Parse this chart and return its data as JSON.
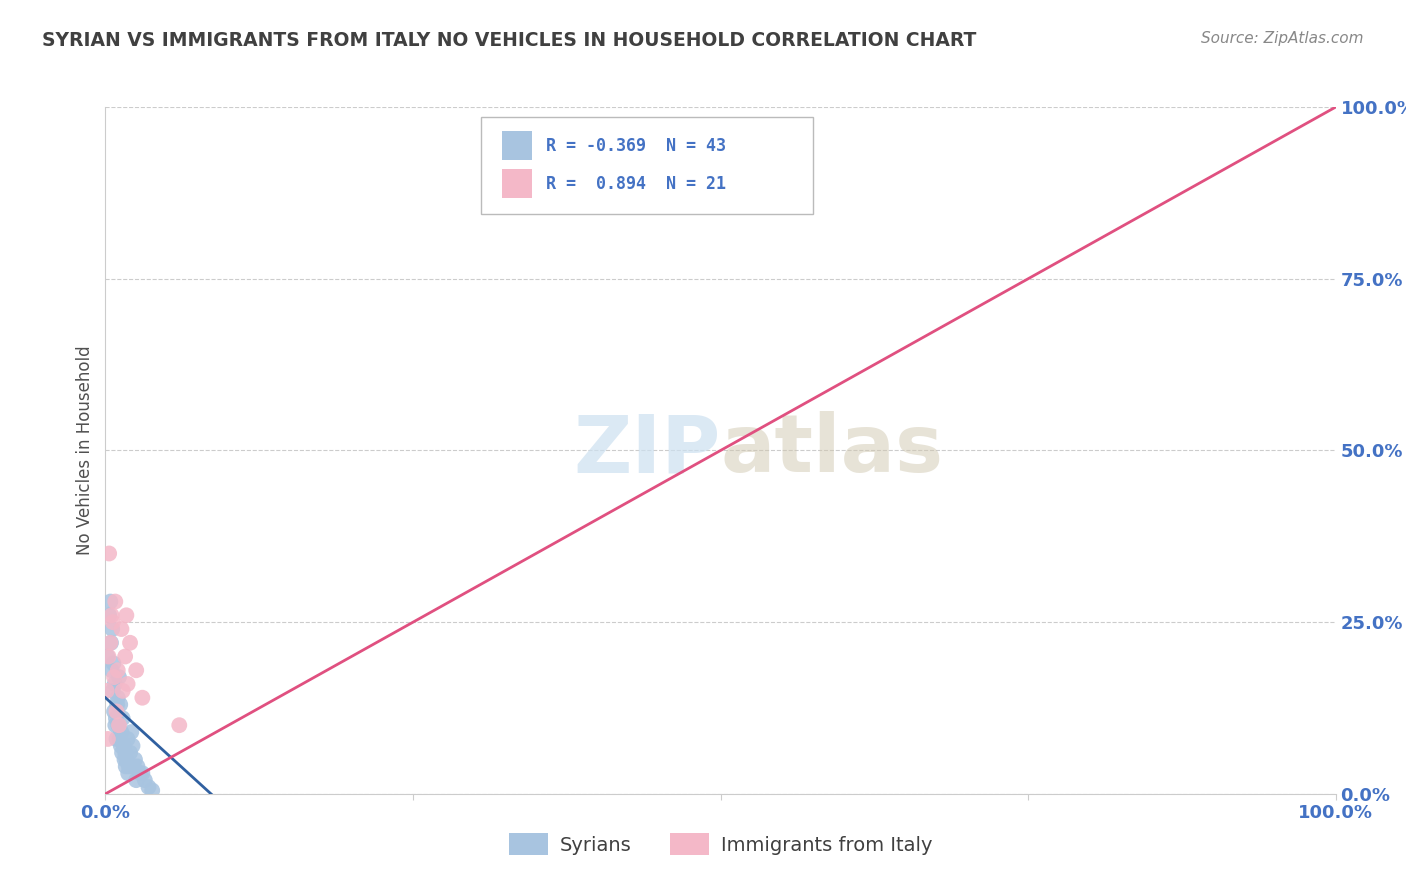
{
  "title": "SYRIAN VS IMMIGRANTS FROM ITALY NO VEHICLES IN HOUSEHOLD CORRELATION CHART",
  "source": "Source: ZipAtlas.com",
  "ylabel": "No Vehicles in Household",
  "ytick_labels": [
    "0.0%",
    "25.0%",
    "50.0%",
    "75.0%",
    "100.0%"
  ],
  "ytick_vals": [
    0,
    25,
    50,
    75,
    100
  ],
  "xtick_labels": [
    "0.0%",
    "",
    "",
    "",
    "100.0%"
  ],
  "xtick_vals": [
    0,
    25,
    50,
    75,
    100
  ],
  "legend_r1": "R = -0.369  N = 43",
  "legend_r2": "R =  0.894  N = 21",
  "bottom_labels": [
    "Syrians",
    "Immigrants from Italy"
  ],
  "r_syrians": -0.369,
  "n_syrians": 43,
  "r_italy": 0.894,
  "n_italy": 21,
  "syrians_color": "#a8c4e0",
  "italy_color": "#f4b8c8",
  "syrians_line_color": "#3060a0",
  "italy_line_color": "#e05080",
  "text_color": "#4472C4",
  "title_color": "#404040",
  "source_color": "#888888",
  "ylabel_color": "#505050",
  "watermark_color": "#cce0f0",
  "background_color": "#ffffff",
  "grid_color": "#cccccc",
  "xlim": [
    0,
    100
  ],
  "ylim": [
    0,
    100
  ],
  "blue_line_x": [
    0,
    9.5
  ],
  "blue_line_y": [
    14.0,
    -1.5
  ],
  "pink_line_x": [
    0,
    100
  ],
  "pink_line_y": [
    0,
    100
  ],
  "syrians_x": [
    0.15,
    0.3,
    0.45,
    0.5,
    0.6,
    0.7,
    0.8,
    0.9,
    1.0,
    1.1,
    1.2,
    1.3,
    1.4,
    1.5,
    1.6,
    1.7,
    1.8,
    1.9,
    2.0,
    2.1,
    2.2,
    2.4,
    2.6,
    2.8,
    3.0,
    3.2,
    3.5,
    3.8,
    0.4,
    0.55,
    0.65,
    0.75,
    0.85,
    0.95,
    1.05,
    1.15,
    1.25,
    1.35,
    1.55,
    1.65,
    1.85,
    2.3,
    2.5
  ],
  "syrians_y": [
    20.0,
    26.0,
    22.0,
    18.0,
    15.0,
    12.0,
    10.0,
    8.0,
    14.0,
    17.0,
    13.0,
    9.0,
    11.0,
    7.0,
    6.0,
    5.0,
    8.0,
    4.0,
    6.0,
    9.0,
    7.0,
    5.0,
    4.0,
    3.0,
    3.0,
    2.0,
    1.0,
    0.5,
    28.0,
    24.0,
    19.0,
    16.0,
    11.0,
    13.0,
    10.0,
    8.0,
    7.0,
    6.0,
    5.0,
    4.0,
    3.0,
    4.0,
    2.0
  ],
  "italy_x": [
    0.1,
    0.25,
    0.4,
    0.6,
    0.8,
    1.0,
    1.3,
    1.6,
    1.8,
    2.0,
    2.5,
    3.0,
    0.3,
    0.5,
    0.7,
    0.9,
    1.1,
    1.4,
    6.0,
    0.2,
    1.7
  ],
  "italy_y": [
    15.0,
    20.0,
    22.0,
    25.0,
    28.0,
    18.0,
    24.0,
    20.0,
    16.0,
    22.0,
    18.0,
    14.0,
    35.0,
    26.0,
    17.0,
    12.0,
    10.0,
    15.0,
    10.0,
    8.0,
    26.0
  ]
}
